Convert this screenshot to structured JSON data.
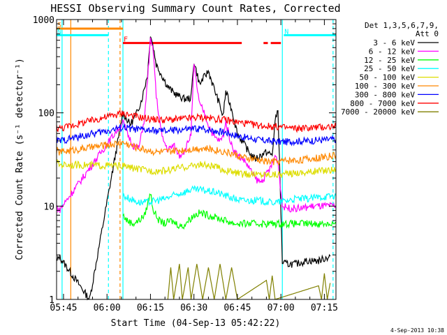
{
  "chart_data": {
    "type": "line",
    "title": "HESSI Observing Summary Count Rates, Corrected",
    "xlabel": "Start Time (04-Sep-13 05:42:22)",
    "ylabel": "Corrected Count Rate (s⁻¹ detector⁻¹)",
    "y_scale": "log",
    "ylim": [
      1,
      1000
    ],
    "xlim_minutes": [
      -2.4,
      94
    ],
    "x_ticks": [
      {
        "minute": 0,
        "label": "05:45"
      },
      {
        "minute": 15,
        "label": "06:00"
      },
      {
        "minute": 30,
        "label": "06:15"
      },
      {
        "minute": 45,
        "label": "06:30"
      },
      {
        "minute": 60,
        "label": "06:45"
      },
      {
        "minute": 75,
        "label": "07:00"
      },
      {
        "minute": 90,
        "label": "07:15"
      }
    ],
    "y_ticks": [
      {
        "value": 1,
        "label": "1"
      },
      {
        "value": 10,
        "label": "10"
      },
      {
        "value": 100,
        "label": "100"
      },
      {
        "value": 1000,
        "label": "1000"
      }
    ],
    "legend_header": [
      "Det 1,3,5,6,7,9,",
      "Att 0"
    ],
    "series": [
      {
        "name": "3 - 6 keV",
        "color": "#000000",
        "points": [
          [
            -2.4,
            2.5
          ],
          [
            -1.5,
            2.9
          ],
          [
            9,
            1
          ],
          [
            20.5,
            100
          ],
          [
            23,
            75
          ],
          [
            25,
            95
          ],
          [
            27,
            140
          ],
          [
            29,
            260
          ],
          [
            30,
            700
          ],
          [
            31,
            500
          ],
          [
            32,
            330
          ],
          [
            34,
            250
          ],
          [
            36,
            190
          ],
          [
            38,
            165
          ],
          [
            40,
            150
          ],
          [
            42,
            140
          ],
          [
            44,
            145
          ],
          [
            45,
            360
          ],
          [
            47,
            200
          ],
          [
            48,
            230
          ],
          [
            50,
            280
          ],
          [
            52,
            180
          ],
          [
            54,
            120
          ],
          [
            55,
            90
          ],
          [
            56,
            170
          ],
          [
            58,
            110
          ],
          [
            60,
            60
          ],
          [
            62,
            48
          ],
          [
            64,
            38
          ],
          [
            66,
            32
          ],
          [
            68,
            35
          ],
          [
            70,
            38
          ],
          [
            72,
            35
          ],
          [
            73,
            80
          ],
          [
            74,
            110
          ],
          [
            75.5,
            2.5
          ],
          [
            77,
            2.4
          ],
          [
            80,
            2.4
          ],
          [
            84,
            2.6
          ],
          [
            88,
            2.6
          ],
          [
            92,
            2.9
          ]
        ]
      },
      {
        "name": "6 - 12 keV",
        "color": "#ff00ff",
        "points": [
          [
            -2.4,
            10
          ],
          [
            -1.5,
            9
          ],
          [
            20.5,
            80
          ],
          [
            22,
            60
          ],
          [
            24,
            45
          ],
          [
            26,
            42
          ],
          [
            28,
            90
          ],
          [
            30,
            600
          ],
          [
            31,
            450
          ],
          [
            32,
            150
          ],
          [
            34,
            55
          ],
          [
            36,
            40
          ],
          [
            38,
            45
          ],
          [
            40,
            35
          ],
          [
            42,
            40
          ],
          [
            44,
            60
          ],
          [
            45,
            320
          ],
          [
            47,
            120
          ],
          [
            48,
            110
          ],
          [
            50,
            75
          ],
          [
            52,
            55
          ],
          [
            54,
            50
          ],
          [
            55,
            55
          ],
          [
            56,
            80
          ],
          [
            58,
            45
          ],
          [
            60,
            35
          ],
          [
            62,
            32
          ],
          [
            64,
            26
          ],
          [
            66,
            20
          ],
          [
            68,
            18
          ],
          [
            70,
            22
          ],
          [
            72,
            28
          ],
          [
            73,
            35
          ],
          [
            74,
            30
          ],
          [
            75.5,
            10
          ],
          [
            78,
            9.5
          ],
          [
            82,
            9.5
          ],
          [
            86,
            10
          ],
          [
            90,
            10
          ],
          [
            94,
            10
          ]
        ]
      },
      {
        "name": "12 - 25 keV",
        "color": "#00ff00",
        "points": [
          [
            20.5,
            8
          ],
          [
            22,
            7
          ],
          [
            24,
            6.5
          ],
          [
            26,
            7
          ],
          [
            28,
            8
          ],
          [
            30,
            14
          ],
          [
            31,
            9
          ],
          [
            33,
            7
          ],
          [
            35,
            6.5
          ],
          [
            37,
            7
          ],
          [
            39,
            6.5
          ],
          [
            41,
            6
          ],
          [
            43,
            7
          ],
          [
            45,
            8
          ],
          [
            47,
            8.5
          ],
          [
            50,
            8
          ],
          [
            53,
            7.5
          ],
          [
            56,
            7
          ],
          [
            59,
            6.5
          ],
          [
            62,
            6.5
          ],
          [
            65,
            6.5
          ],
          [
            68,
            6.5
          ],
          [
            71,
            6.5
          ],
          [
            74,
            6.5
          ],
          [
            77,
            6.5
          ],
          [
            80,
            6.5
          ],
          [
            84,
            6.5
          ],
          [
            88,
            6.5
          ],
          [
            94,
            6.5
          ]
        ]
      },
      {
        "name": "25 - 50 keV",
        "color": "#00ffff",
        "points": [
          [
            20.5,
            13
          ],
          [
            23,
            12
          ],
          [
            26,
            11
          ],
          [
            29,
            11
          ],
          [
            32,
            11.5
          ],
          [
            35,
            12
          ],
          [
            38,
            13
          ],
          [
            41,
            14
          ],
          [
            44,
            15
          ],
          [
            47,
            15
          ],
          [
            50,
            14.5
          ],
          [
            53,
            14
          ],
          [
            56,
            13
          ],
          [
            59,
            12
          ],
          [
            62,
            11.5
          ],
          [
            65,
            11.5
          ],
          [
            68,
            11.5
          ],
          [
            71,
            11
          ],
          [
            74,
            11
          ],
          [
            77,
            11.5
          ],
          [
            80,
            12
          ],
          [
            84,
            12
          ],
          [
            88,
            12.5
          ],
          [
            94,
            13
          ]
        ]
      },
      {
        "name": "50 - 100 keV",
        "color": "#dddd00",
        "points": [
          [
            -2.4,
            30
          ],
          [
            -1.5,
            28
          ],
          [
            20.5,
            27
          ],
          [
            23,
            26
          ],
          [
            26,
            25
          ],
          [
            29,
            24
          ],
          [
            32,
            24
          ],
          [
            35,
            24
          ],
          [
            38,
            25
          ],
          [
            41,
            26
          ],
          [
            44,
            27
          ],
          [
            47,
            28
          ],
          [
            50,
            27
          ],
          [
            53,
            26
          ],
          [
            56,
            24
          ],
          [
            59,
            23
          ],
          [
            62,
            22
          ],
          [
            65,
            22
          ],
          [
            68,
            22
          ],
          [
            71,
            22
          ],
          [
            74,
            22
          ],
          [
            77,
            22
          ],
          [
            80,
            23
          ],
          [
            84,
            23
          ],
          [
            88,
            24
          ],
          [
            94,
            25
          ]
        ]
      },
      {
        "name": "100 - 300 keV",
        "color": "#ff8800",
        "points": [
          [
            -2.4,
            40
          ],
          [
            -1.5,
            38
          ],
          [
            20.5,
            48
          ],
          [
            23,
            45
          ],
          [
            26,
            42
          ],
          [
            29,
            40
          ],
          [
            32,
            38
          ],
          [
            35,
            38
          ],
          [
            38,
            39
          ],
          [
            41,
            40
          ],
          [
            44,
            41
          ],
          [
            47,
            42
          ],
          [
            50,
            41
          ],
          [
            53,
            40
          ],
          [
            56,
            38
          ],
          [
            59,
            36
          ],
          [
            62,
            33
          ],
          [
            65,
            32
          ],
          [
            68,
            31
          ],
          [
            71,
            30
          ],
          [
            74,
            30
          ],
          [
            77,
            31
          ],
          [
            80,
            31
          ],
          [
            84,
            32
          ],
          [
            88,
            33
          ],
          [
            94,
            35
          ]
        ]
      },
      {
        "name": "300 - 800 keV",
        "color": "#0000ff",
        "points": [
          [
            -2.4,
            52
          ],
          [
            -1.5,
            50
          ],
          [
            20.5,
            70
          ],
          [
            23,
            68
          ],
          [
            26,
            66
          ],
          [
            29,
            65
          ],
          [
            32,
            64
          ],
          [
            35,
            64
          ],
          [
            38,
            65
          ],
          [
            41,
            66
          ],
          [
            44,
            67
          ],
          [
            47,
            68
          ],
          [
            50,
            66
          ],
          [
            53,
            64
          ],
          [
            56,
            62
          ],
          [
            59,
            58
          ],
          [
            62,
            55
          ],
          [
            65,
            53
          ],
          [
            68,
            51
          ],
          [
            71,
            50
          ],
          [
            74,
            49
          ],
          [
            77,
            49
          ],
          [
            80,
            50
          ],
          [
            84,
            50
          ],
          [
            88,
            51
          ],
          [
            94,
            52
          ]
        ]
      },
      {
        "name": "800 - 7000 keV",
        "color": "#ff0000",
        "points": [
          [
            -2.4,
            70
          ],
          [
            -1.5,
            68
          ],
          [
            20.5,
            100
          ],
          [
            23,
            95
          ],
          [
            26,
            90
          ],
          [
            29,
            87
          ],
          [
            32,
            85
          ],
          [
            35,
            84
          ],
          [
            38,
            85
          ],
          [
            41,
            86
          ],
          [
            44,
            88
          ],
          [
            47,
            90
          ],
          [
            50,
            88
          ],
          [
            53,
            86
          ],
          [
            56,
            84
          ],
          [
            59,
            80
          ],
          [
            62,
            78
          ],
          [
            65,
            75
          ],
          [
            68,
            73
          ],
          [
            71,
            72
          ],
          [
            74,
            71
          ],
          [
            77,
            69
          ],
          [
            80,
            68
          ],
          [
            84,
            69
          ],
          [
            88,
            70
          ],
          [
            94,
            72
          ]
        ]
      },
      {
        "name": "7000 - 20000 keV",
        "color": "#808000",
        "points": [
          [
            36,
            1
          ],
          [
            37,
            2.2
          ],
          [
            38,
            1
          ],
          [
            40,
            2.4
          ],
          [
            41,
            1
          ],
          [
            43,
            2.2
          ],
          [
            44,
            1
          ],
          [
            46,
            2.4
          ],
          [
            48,
            1
          ],
          [
            50,
            2.2
          ],
          [
            52,
            1
          ],
          [
            54,
            2.4
          ],
          [
            56,
            1
          ],
          [
            58,
            2.2
          ],
          [
            60,
            1
          ],
          [
            70,
            1.6
          ],
          [
            71,
            1
          ],
          [
            72,
            1.8
          ],
          [
            73,
            1
          ],
          [
            88,
            1.4
          ],
          [
            89,
            1
          ],
          [
            90,
            1.9
          ],
          [
            91,
            1
          ],
          [
            92,
            1.5
          ]
        ]
      }
    ],
    "intervals": [
      {
        "label": "S",
        "color": "#ff8800",
        "start": -2.4,
        "end": 20.5,
        "level": 800
      },
      {
        "label": "N",
        "color": "#00ffff",
        "start": -2.4,
        "end": 15.5,
        "level": 680
      },
      {
        "label": "N",
        "color": "#00ffff",
        "start": 76,
        "end": 94,
        "level": 680
      },
      {
        "label": "F",
        "color": "#ff0000",
        "start": 20.5,
        "end": 61.5,
        "level": 560
      },
      {
        "label": "",
        "color": "#ff0000",
        "start": 69,
        "end": 70.5,
        "level": 560
      },
      {
        "label": "",
        "color": "#ff0000",
        "start": 71.5,
        "end": 75,
        "level": 560
      }
    ],
    "vlines": [
      {
        "minute": -0.5,
        "color": "#00ffff",
        "dash": false
      },
      {
        "minute": 2.5,
        "color": "#ff8800",
        "dash": false
      },
      {
        "minute": 15.5,
        "color": "#00ffff",
        "dash": true
      },
      {
        "minute": 19.5,
        "color": "#ff8800",
        "dash": true
      },
      {
        "minute": 20.5,
        "color": "#00ffff",
        "dash": false
      },
      {
        "minute": 75.5,
        "color": "#00ffff",
        "dash": false
      },
      {
        "minute": 93,
        "color": "#00ffff",
        "dash": true
      }
    ],
    "footer": "4-Sep-2013 10:38",
    "grid": false,
    "legend_position": "right"
  }
}
